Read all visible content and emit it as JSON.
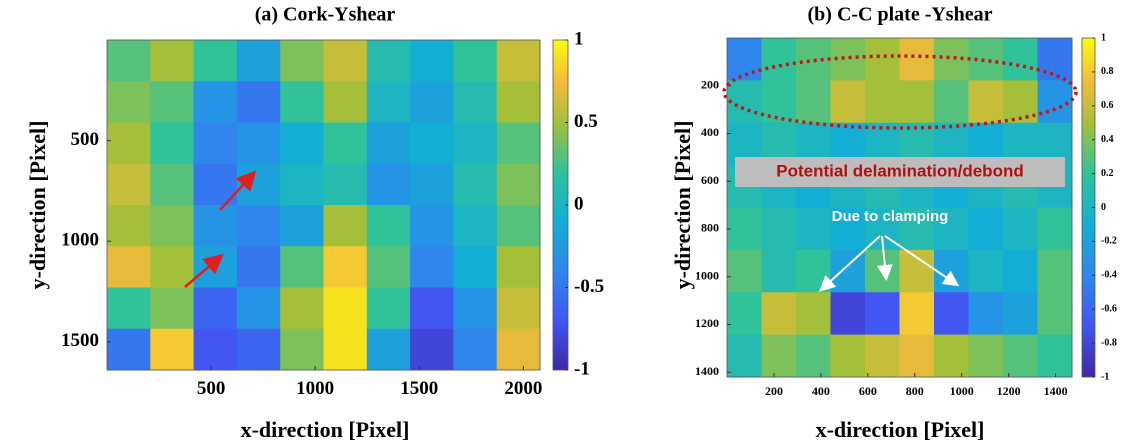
{
  "chart_data": [
    {
      "type": "heatmap",
      "title": "(a) Cork-Yshear",
      "x_label": "x-direction [Pixel]",
      "y_label": "y-direction [Pixel]",
      "xlim": [
        0,
        2080
      ],
      "ylim": [
        0,
        1640
      ],
      "y_reversed": true,
      "xticks": [
        500,
        1000,
        1500,
        2000
      ],
      "yticks": [
        500,
        1000,
        1500
      ],
      "colormap": "parula",
      "clim": [
        -1,
        1
      ],
      "cticks": [
        1,
        0.5,
        0,
        -0.5,
        -1
      ],
      "z": [
        [
          0.3,
          0.5,
          0.2,
          -0.2,
          0.4,
          0.6,
          0.1,
          -0.1,
          0.2,
          0.6
        ],
        [
          0.4,
          0.3,
          -0.3,
          -0.5,
          0.2,
          0.5,
          0.0,
          -0.2,
          0.1,
          0.5
        ],
        [
          0.5,
          0.2,
          -0.4,
          -0.3,
          -0.1,
          0.2,
          -0.2,
          -0.1,
          0.0,
          0.3
        ],
        [
          0.6,
          0.3,
          -0.5,
          -0.2,
          0.0,
          0.1,
          -0.3,
          -0.2,
          0.1,
          0.4
        ],
        [
          0.5,
          0.4,
          -0.3,
          -0.4,
          -0.2,
          0.5,
          0.2,
          -0.3,
          0.0,
          0.3
        ],
        [
          0.7,
          0.5,
          -0.2,
          -0.5,
          0.3,
          0.8,
          0.3,
          -0.4,
          -0.1,
          0.5
        ],
        [
          0.2,
          0.4,
          -0.6,
          -0.3,
          0.5,
          0.9,
          0.2,
          -0.7,
          -0.3,
          0.6
        ],
        [
          -0.5,
          0.8,
          -0.7,
          -0.6,
          0.4,
          0.9,
          -0.2,
          -0.8,
          -0.4,
          0.7
        ]
      ]
    },
    {
      "type": "heatmap",
      "title": "(b) C-C plate -Yshear",
      "x_label": "x-direction [Pixel]",
      "y_label": "y-direction [Pixel]",
      "xlim": [
        0,
        1470
      ],
      "ylim": [
        0,
        1420
      ],
      "y_reversed": true,
      "xticks": [
        200,
        400,
        600,
        800,
        1000,
        1200,
        1400
      ],
      "yticks": [
        200,
        400,
        600,
        800,
        1000,
        1200,
        1400
      ],
      "colormap": "parula",
      "clim": [
        -1,
        1
      ],
      "cticks": [
        1,
        0.8,
        0.6,
        0.4,
        0.2,
        0,
        -0.2,
        -0.4,
        -0.6,
        -0.8,
        -1
      ],
      "annotations": [
        "Potential delamination/debond",
        "Due to clamping"
      ],
      "z": [
        [
          -0.4,
          0.2,
          0.3,
          0.4,
          0.5,
          0.7,
          0.4,
          0.3,
          0.2,
          -0.5
        ],
        [
          0.1,
          0.2,
          0.3,
          0.6,
          0.5,
          0.5,
          0.3,
          0.6,
          0.5,
          -0.3
        ],
        [
          0.0,
          0.1,
          0.0,
          -0.1,
          0.0,
          0.1,
          0.0,
          -0.1,
          0.0,
          0.0
        ],
        [
          0.1,
          0.0,
          -0.1,
          0.0,
          0.1,
          0.0,
          -0.1,
          0.0,
          0.1,
          0.0
        ],
        [
          0.2,
          0.1,
          0.0,
          -0.1,
          0.0,
          0.1,
          0.0,
          -0.1,
          0.0,
          0.2
        ],
        [
          0.3,
          0.1,
          0.2,
          -0.2,
          0.3,
          0.6,
          -0.2,
          0.0,
          -0.1,
          0.3
        ],
        [
          0.2,
          0.6,
          0.5,
          -0.8,
          -0.7,
          0.8,
          -0.7,
          -0.3,
          -0.2,
          0.3
        ],
        [
          0.1,
          0.4,
          0.3,
          0.5,
          0.6,
          0.7,
          0.5,
          0.4,
          0.3,
          0.2
        ]
      ]
    }
  ]
}
